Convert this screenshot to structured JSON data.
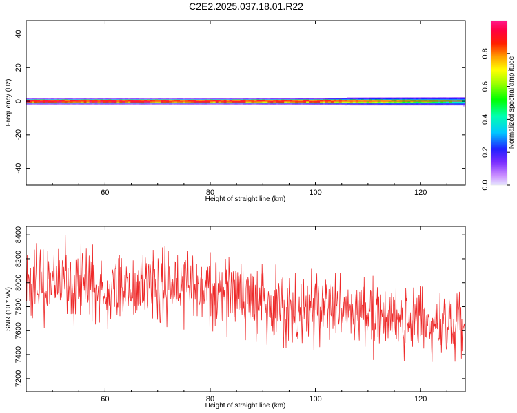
{
  "title": "C2E2.2025.037.18.01.R22",
  "colors": {
    "snr_line": "#ee2a2a",
    "axis": "#000000",
    "background": "#ffffff"
  },
  "chart_data": [
    {
      "type": "heatmap",
      "xlabel": "Height of straight line (km)",
      "ylabel": "Frequency (Hz)",
      "xlim": [
        45,
        128.5
      ],
      "ylim": [
        -50,
        48
      ],
      "xticks": [
        60,
        80,
        100,
        120
      ],
      "yticks": [
        40,
        20,
        0,
        -20,
        -40
      ],
      "grid": false,
      "band": {
        "center_hz": 0,
        "note": "narrow band centred at 0 Hz, amplitude decreasing with height",
        "profile": [
          {
            "x": 45,
            "amplitude": 0.95,
            "halfwidth_hz": 2.0
          },
          {
            "x": 60,
            "amplitude": 0.96,
            "halfwidth_hz": 2.0
          },
          {
            "x": 80,
            "amplitude": 0.93,
            "halfwidth_hz": 2.0
          },
          {
            "x": 100,
            "amplitude": 0.86,
            "halfwidth_hz": 2.2
          },
          {
            "x": 110,
            "amplitude": 0.72,
            "halfwidth_hz": 2.6
          },
          {
            "x": 120,
            "amplitude": 0.56,
            "halfwidth_hz": 3.0
          },
          {
            "x": 128.5,
            "amplitude": 0.45,
            "halfwidth_hz": 3.4
          }
        ]
      },
      "colorbar": {
        "label": "Normalized spectral amplitude",
        "range": [
          0,
          1
        ],
        "ticks": [
          "0.0",
          "0.2",
          "0.4",
          "0.6",
          "0.8"
        ],
        "colormap": "hsv"
      }
    },
    {
      "type": "line",
      "xlabel": "Height of straight line (km)",
      "ylabel": "SNR (10 * v/v)",
      "xlim": [
        45,
        128.5
      ],
      "ylim": [
        7090,
        8470
      ],
      "xticks": [
        60,
        80,
        100,
        120
      ],
      "yticks": [
        8400,
        8200,
        8000,
        7800,
        7600,
        7400,
        7200
      ],
      "grid": false,
      "series": [
        {
          "trend": [
            {
              "x": 45,
              "y": 8000
            },
            {
              "x": 60,
              "y": 7980
            },
            {
              "x": 70,
              "y": 7990
            },
            {
              "x": 80,
              "y": 7930
            },
            {
              "x": 90,
              "y": 7850
            },
            {
              "x": 100,
              "y": 7780
            },
            {
              "x": 110,
              "y": 7720
            },
            {
              "x": 120,
              "y": 7660
            },
            {
              "x": 128.5,
              "y": 7620
            }
          ],
          "noise_amplitude": 190,
          "samples": 900
        }
      ]
    }
  ]
}
